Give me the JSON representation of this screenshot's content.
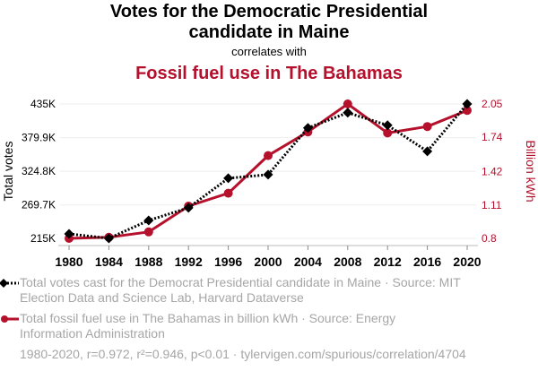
{
  "header": {
    "title_line1": "Votes for the Democratic Presidential",
    "title_line2": "candidate in Maine",
    "correlates": "correlates with",
    "subtitle": "Fossil fuel use in The Bahamas"
  },
  "legend": {
    "series1": "Total votes cast for the Democrat Presidential candidate in Maine · Source: MIT Election Data and Science Lab, Harvard Dataverse",
    "series2": "Total fossil fuel use in The Bahamas in billion kWh · Source: Energy Information Administration"
  },
  "footer": "1980-2020, r=0.972, r²=0.946, p<0.01 · tylervigen.com/spurious/correlation/4704",
  "colors": {
    "series1": "#000000",
    "series2": "#b5112d",
    "grid": "#eeeeee"
  },
  "chart_data": {
    "type": "line",
    "title": "Votes for the Democratic Presidential candidate in Maine correlates with Fossil fuel use in The Bahamas",
    "xlabel": "",
    "x": [
      1980,
      1984,
      1988,
      1992,
      1996,
      2000,
      2004,
      2008,
      2012,
      2016,
      2020
    ],
    "x_ticks": [
      "1980",
      "1984",
      "1988",
      "1992",
      "1996",
      "2000",
      "2004",
      "2008",
      "2012",
      "2016",
      "2020"
    ],
    "y_left": {
      "label": "Total votes",
      "range": [
        215000,
        435000
      ],
      "ticks": [
        215000,
        269700,
        324800,
        379900,
        435000
      ],
      "tick_labels": [
        "215K",
        "269.7K",
        "324.8K",
        "379.9K",
        "435K"
      ]
    },
    "y_right": {
      "label": "Billion kWh",
      "range": [
        0.8,
        2.05
      ],
      "ticks": [
        0.8,
        1.11,
        1.42,
        1.74,
        2.05
      ],
      "tick_labels": [
        "0.8",
        "1.11",
        "1.42",
        "1.74",
        "2.05"
      ]
    },
    "grid": true,
    "legend_position": "bottom",
    "series": [
      {
        "name": "Total votes cast for the Democrat Presidential candidate in Maine",
        "axis": "left",
        "style": "dotted",
        "marker": "diamond",
        "values": [
          222400,
          215000,
          244400,
          265000,
          313400,
          319300,
          395700,
          420700,
          400100,
          357500,
          435000
        ]
      },
      {
        "name": "Total fossil fuel use in The Bahamas in billion kWh",
        "axis": "right",
        "style": "solid",
        "marker": "circle",
        "values": [
          0.8,
          0.81,
          0.86,
          1.1,
          1.22,
          1.57,
          1.79,
          2.05,
          1.78,
          1.84,
          1.99
        ]
      }
    ]
  }
}
